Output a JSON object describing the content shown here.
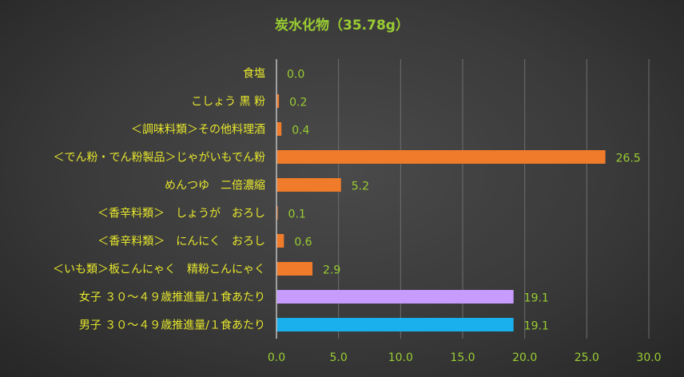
{
  "chart_data": {
    "type": "bar",
    "orientation": "horizontal",
    "title": "炭水化物（35.78g）",
    "xlabel": "",
    "ylabel": "",
    "xlim": [
      0,
      30
    ],
    "xticks": [
      "0.0",
      "5.0",
      "10.0",
      "15.0",
      "20.0",
      "25.0",
      "30.0"
    ],
    "grid": true,
    "categories": [
      "食塩",
      "こしょう 黒 粉",
      "＜調味料類＞その他料理酒",
      "＜でん粉・でん粉製品＞じゃがいもでん粉",
      "めんつゆ　二倍濃縮",
      "＜香辛料類＞　しょうが　おろし",
      "＜香辛料類＞　にんにく　おろし",
      "＜いも類＞板こんにゃく　精粉こんにゃく",
      "女子 ３０～４９歳推進量/１食あたり",
      "男子 ３０～４９歳推進量/１食あたり"
    ],
    "values": [
      0.0,
      0.2,
      0.4,
      26.5,
      5.2,
      0.1,
      0.6,
      2.9,
      19.1,
      19.1
    ],
    "value_labels": [
      "0.0",
      "0.2",
      "0.4",
      "26.5",
      "5.2",
      "0.1",
      "0.6",
      "2.9",
      "19.1",
      "19.1"
    ],
    "bar_colors": [
      "#f07b2a",
      "#f07b2a",
      "#f07b2a",
      "#f07b2a",
      "#f07b2a",
      "#f07b2a",
      "#f07b2a",
      "#f07b2a",
      "#c89bff",
      "#1ab0ee"
    ]
  }
}
